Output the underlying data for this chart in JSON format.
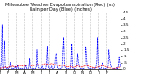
{
  "title": "Milwaukee Weather Evapotranspiration (Red) (vs) Rain per Day (Blue) (Inches)",
  "title_fontsize": 3.5,
  "background_color": "#ffffff",
  "ylim": [
    0,
    4.5
  ],
  "rain": [
    0.0,
    0.05,
    0.8,
    3.5,
    0.1,
    0.0,
    0.6,
    2.2,
    0.3,
    0.05,
    0.0,
    0.1,
    0.0,
    0.0,
    0.1,
    0.5,
    0.05,
    0.0,
    0.0,
    0.0,
    0.0,
    0.0,
    0.0,
    0.2,
    0.0,
    0.05,
    0.3,
    0.0,
    0.0,
    0.0,
    0.0,
    0.0,
    0.0,
    0.0,
    0.0,
    0.0,
    0.0,
    0.1,
    0.3,
    0.0,
    0.0,
    0.0,
    0.1,
    0.8,
    0.0,
    0.0,
    0.0,
    0.0,
    0.0,
    0.0,
    0.0,
    0.0,
    0.0,
    0.1,
    1.5,
    0.3,
    0.1,
    0.0,
    0.0,
    0.0,
    0.0,
    0.0,
    0.2,
    0.0,
    0.0,
    0.0,
    0.0,
    0.0,
    0.5,
    1.8,
    0.3,
    0.0,
    0.0,
    0.0,
    0.0,
    0.05,
    0.2,
    0.0,
    0.0,
    0.0,
    0.2,
    1.0,
    1.2,
    0.3,
    0.0,
    0.0,
    0.0,
    0.0,
    0.0,
    0.0,
    0.0,
    0.1,
    1.5,
    2.5,
    0.4,
    0.1,
    0.0,
    0.0,
    0.0,
    0.0,
    0.0,
    0.0,
    0.0,
    0.0,
    0.5,
    2.0,
    0.1,
    0.0,
    0.0,
    0.0,
    0.0,
    0.0,
    0.1,
    0.4,
    1.2,
    0.5,
    0.3,
    0.1,
    0.0,
    0.0,
    0.0,
    0.0,
    0.0,
    0.0,
    0.0,
    0.5,
    1.8,
    1.0,
    0.2,
    0.1,
    0.0,
    0.0,
    0.0,
    0.0,
    0.0,
    0.05,
    0.0,
    0.0,
    0.0,
    0.0,
    0.0,
    0.2,
    0.6,
    2.5,
    0.3,
    0.0,
    0.0,
    0.0,
    0.0,
    0.3,
    0.5,
    0.1,
    0.0,
    0.0,
    0.0,
    0.0,
    0.0,
    0.05,
    0.2,
    1.5,
    0.8,
    0.5,
    0.2,
    0.1,
    0.0,
    0.0,
    0.0,
    0.0,
    0.0,
    0.0,
    0.0,
    0.1,
    0.0,
    0.2,
    0.9,
    0.5,
    0.2,
    0.1
  ],
  "et": [
    0.02,
    0.03,
    0.04,
    0.05,
    0.05,
    0.06,
    0.08,
    0.1,
    0.12,
    0.12,
    0.1,
    0.08,
    0.1,
    0.12,
    0.14,
    0.15,
    0.16,
    0.18,
    0.2,
    0.2,
    0.18,
    0.16,
    0.14,
    0.12,
    0.14,
    0.16,
    0.18,
    0.2,
    0.22,
    0.24,
    0.25,
    0.25,
    0.24,
    0.22,
    0.2,
    0.18,
    0.2,
    0.22,
    0.24,
    0.26,
    0.28,
    0.3,
    0.3,
    0.28,
    0.26,
    0.24,
    0.22,
    0.2,
    0.22,
    0.24,
    0.26,
    0.28,
    0.3,
    0.32,
    0.34,
    0.34,
    0.32,
    0.3,
    0.28,
    0.26,
    0.28,
    0.3,
    0.32,
    0.34,
    0.36,
    0.38,
    0.4,
    0.4,
    0.38,
    0.36,
    0.34,
    0.32,
    0.34,
    0.36,
    0.38,
    0.4,
    0.42,
    0.4,
    0.38,
    0.36,
    0.34,
    0.32,
    0.3,
    0.28,
    0.26,
    0.24,
    0.22,
    0.2,
    0.22,
    0.24,
    0.26,
    0.28,
    0.26,
    0.24,
    0.22,
    0.2,
    0.18,
    0.16,
    0.14,
    0.12,
    0.14,
    0.16,
    0.18,
    0.18,
    0.16,
    0.14,
    0.12,
    0.1,
    0.1,
    0.12,
    0.14,
    0.16,
    0.18,
    0.2,
    0.22,
    0.2,
    0.18,
    0.16,
    0.14,
    0.12,
    0.14,
    0.16,
    0.18,
    0.2,
    0.22,
    0.24,
    0.26,
    0.26,
    0.24,
    0.22,
    0.2,
    0.18,
    0.16,
    0.14,
    0.12,
    0.1,
    0.08,
    0.06,
    0.05,
    0.05,
    0.06,
    0.08,
    0.1,
    0.12,
    0.14,
    0.16,
    0.18,
    0.2,
    0.22,
    0.24,
    0.26,
    0.24,
    0.22,
    0.2,
    0.18,
    0.16,
    0.14,
    0.12,
    0.1,
    0.08,
    0.06,
    0.05,
    0.04,
    0.03,
    0.03,
    0.02,
    0.02,
    0.02,
    0.02,
    0.03,
    0.04,
    0.05,
    0.06,
    0.08,
    0.1,
    0.12,
    0.1,
    0.08
  ],
  "vline_positions": [
    12,
    24,
    36,
    48,
    60,
    72,
    84,
    96,
    108,
    120,
    132,
    144,
    156
  ],
  "xtick_positions": [
    0,
    12,
    24,
    36,
    48,
    60,
    72,
    84,
    96,
    108,
    120,
    132,
    144,
    156
  ],
  "xtick_labels": [
    "J",
    "F",
    "M",
    "A",
    "M",
    "J",
    "J",
    "A",
    "S",
    "O",
    "N",
    "D",
    "J",
    "F"
  ],
  "ytick_positions": [
    0,
    0.5,
    1.0,
    1.5,
    2.0,
    2.5,
    3.0,
    3.5,
    4.0,
    4.5
  ],
  "ytick_labels": [
    "0",
    ".5",
    "1",
    "1.5",
    "2",
    "2.5",
    "3",
    "3.5",
    "4",
    "4.5"
  ],
  "rain_color": "#0000ff",
  "et_color": "#ff0000",
  "grid_color": "#888888"
}
